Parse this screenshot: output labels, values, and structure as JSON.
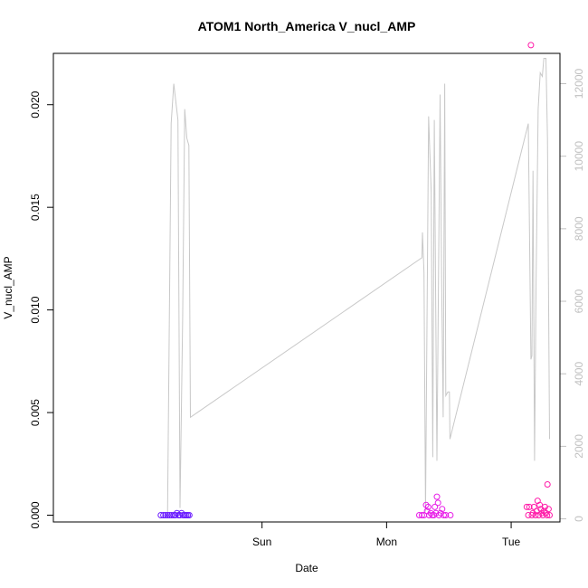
{
  "chart_data": {
    "type": "scatter",
    "title": "ATOM1 North_America V_nucl_AMP",
    "xlabel": "Date",
    "ylabel": "V_nucl_AMP",
    "xlim": [
      -16.2,
      81.4
    ],
    "ylim": [
      -0.00033,
      0.0225
    ],
    "x_unit": "hours since Sat 00:00",
    "x_ticks": [
      {
        "value": 24,
        "label": "Sun"
      },
      {
        "value": 48,
        "label": "Mon"
      },
      {
        "value": 72,
        "label": "Tue"
      }
    ],
    "y_ticks": [
      {
        "value": 0.0,
        "label": "0.000"
      },
      {
        "value": 0.005,
        "label": "0.005"
      },
      {
        "value": 0.01,
        "label": "0.010"
      },
      {
        "value": 0.015,
        "label": "0.015"
      },
      {
        "value": 0.02,
        "label": "0.020"
      }
    ],
    "y2lim": [
      -86,
      12836
    ],
    "y2_ticks": [
      {
        "value": 0,
        "label": "0"
      },
      {
        "value": 2000,
        "label": "2000"
      },
      {
        "value": 4000,
        "label": "4000"
      },
      {
        "value": 6000,
        "label": "6000"
      },
      {
        "value": 8000,
        "label": "8000"
      },
      {
        "value": 10000,
        "label": "10000"
      },
      {
        "value": 12000,
        "label": "12000"
      }
    ],
    "grid": false,
    "colors": {
      "axis": "#000000",
      "secondary_axis": "#c0c0c0",
      "line": "#c8c8c8",
      "series_early": "#6a1aff",
      "series_mid": "#e81ce8",
      "series_late": "#ff1aa8"
    },
    "series": [
      {
        "kind": "line",
        "axis": "right",
        "color": "#c8c8c8",
        "points": [
          [
            5.8,
            80
          ],
          [
            6.5,
            10900
          ],
          [
            7.0,
            12000
          ],
          [
            7.8,
            11000
          ],
          [
            8.2,
            300
          ],
          [
            8.7,
            5500
          ],
          [
            9.1,
            11300
          ],
          [
            9.5,
            10500
          ],
          [
            9.9,
            10300
          ],
          [
            10.2,
            2800
          ],
          [
            54.8,
            7200
          ],
          [
            54.9,
            7900
          ],
          [
            55.2,
            6800
          ],
          [
            55.5,
            200
          ],
          [
            56.1,
            11100
          ],
          [
            56.6,
            9000
          ],
          [
            56.9,
            1700
          ],
          [
            57.2,
            11000
          ],
          [
            57.7,
            1600
          ],
          [
            58.3,
            11700
          ],
          [
            58.6,
            6600
          ],
          [
            58.9,
            2800
          ],
          [
            59.2,
            12000
          ],
          [
            59.4,
            3400
          ],
          [
            59.8,
            3500
          ],
          [
            60.1,
            3500
          ],
          [
            60.2,
            2200
          ],
          [
            75.3,
            10900
          ],
          [
            75.8,
            4400
          ],
          [
            76.0,
            4500
          ],
          [
            76.2,
            9600
          ],
          [
            76.5,
            1600
          ],
          [
            76.8,
            6500
          ],
          [
            77.2,
            11300
          ],
          [
            77.6,
            12300
          ],
          [
            78.0,
            12200
          ],
          [
            78.3,
            12700
          ],
          [
            78.7,
            12700
          ],
          [
            79.0,
            10500
          ],
          [
            79.4,
            2200
          ]
        ]
      },
      {
        "kind": "points",
        "axis": "left",
        "name": "",
        "color": "#6a1aff",
        "points": [
          [
            4.5,
            0.0
          ],
          [
            5.0,
            0.0
          ],
          [
            5.4,
            0.0
          ],
          [
            5.8,
            0.0
          ],
          [
            6.2,
            0.0
          ],
          [
            6.6,
            0.0
          ],
          [
            7.0,
            0.0
          ],
          [
            7.3,
            0.0
          ],
          [
            7.6,
            0.0001
          ],
          [
            7.9,
            0.0
          ],
          [
            8.2,
            0.0
          ],
          [
            8.5,
            0.0001
          ],
          [
            8.8,
            0.0
          ],
          [
            9.1,
            0.0
          ],
          [
            9.4,
            0.0
          ],
          [
            9.7,
            0.0
          ],
          [
            10.0,
            0.0
          ]
        ]
      },
      {
        "kind": "points",
        "axis": "left",
        "name": "",
        "color": "#e81ce8",
        "points": [
          [
            54.3,
            0.0
          ],
          [
            54.8,
            0.0
          ],
          [
            55.2,
            0.0
          ],
          [
            55.6,
            0.0005
          ],
          [
            55.8,
            0.0002
          ],
          [
            56.0,
            0.0004
          ],
          [
            56.2,
            0.0
          ],
          [
            56.5,
            0.0001
          ],
          [
            56.8,
            0.0
          ],
          [
            57.1,
            0.0
          ],
          [
            57.3,
            0.0004
          ],
          [
            57.5,
            0.0001
          ],
          [
            57.7,
            0.0009
          ],
          [
            57.9,
            0.0006
          ],
          [
            58.1,
            0.0
          ],
          [
            58.4,
            0.0001
          ],
          [
            58.7,
            0.0003
          ],
          [
            59.0,
            0.0
          ],
          [
            59.4,
            0.0
          ],
          [
            60.3,
            0.0
          ]
        ]
      },
      {
        "kind": "points",
        "axis": "left",
        "name": "",
        "color": "#ff1aa8",
        "points": [
          [
            75.0,
            0.0004
          ],
          [
            75.3,
            0.0
          ],
          [
            75.5,
            0.0004
          ],
          [
            75.8,
            0.0229
          ],
          [
            76.0,
            0.0
          ],
          [
            76.2,
            0.0001
          ],
          [
            76.4,
            0.0004
          ],
          [
            76.7,
            0.0
          ],
          [
            76.9,
            0.0002
          ],
          [
            77.1,
            0.0007
          ],
          [
            77.3,
            0.0
          ],
          [
            77.5,
            0.0005
          ],
          [
            77.7,
            0.0003
          ],
          [
            77.9,
            0.0001
          ],
          [
            78.1,
            0.0
          ],
          [
            78.3,
            0.0002
          ],
          [
            78.5,
            0.0004
          ],
          [
            78.7,
            0.0001
          ],
          [
            78.9,
            0.0
          ],
          [
            79.0,
            0.0015
          ],
          [
            79.2,
            0.0003
          ],
          [
            79.4,
            0.0
          ]
        ]
      }
    ]
  }
}
